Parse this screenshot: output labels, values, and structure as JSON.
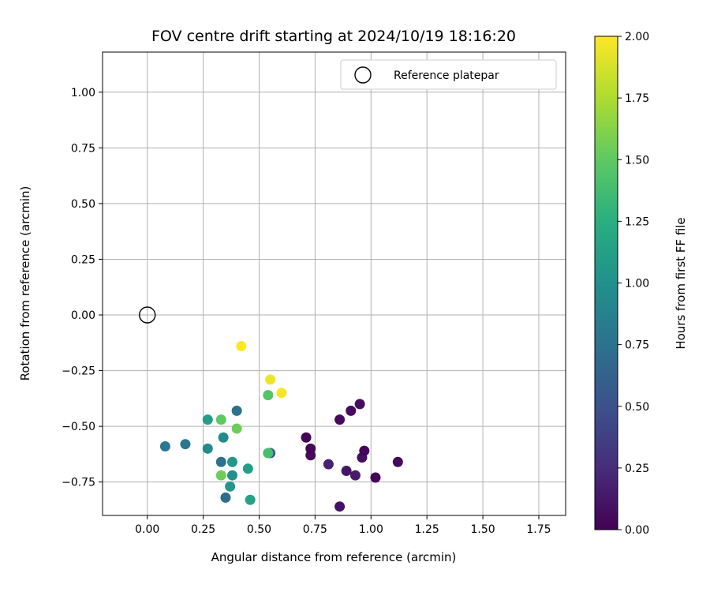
{
  "chart_data": {
    "type": "scatter",
    "title": "FOV centre drift starting at 2024/10/19 18:16:20",
    "xlabel": "Angular distance from reference (arcmin)",
    "ylabel": "Rotation from reference (arcmin)",
    "xlim": [
      -0.2,
      1.87
    ],
    "ylim": [
      -0.9,
      1.18
    ],
    "xticks": [
      0.0,
      0.25,
      0.5,
      0.75,
      1.0,
      1.25,
      1.5,
      1.75
    ],
    "xtick_labels": [
      "0.00",
      "0.25",
      "0.50",
      "0.75",
      "1.00",
      "1.25",
      "1.50",
      "1.75"
    ],
    "yticks": [
      -0.75,
      -0.5,
      -0.25,
      0.0,
      0.25,
      0.5,
      0.75,
      1.0
    ],
    "ytick_labels": [
      "−0.75",
      "−0.50",
      "−0.25",
      "0.00",
      "0.25",
      "0.50",
      "0.75",
      "1.00"
    ],
    "grid": true,
    "legend": {
      "position": "top-right",
      "entries": [
        "Reference platepar"
      ]
    },
    "reference_point": {
      "x": 0.0,
      "y": 0.0,
      "label": "Reference platepar"
    },
    "colorbar": {
      "label": "Hours from first FF file",
      "colormap": "viridis",
      "range": [
        0.0,
        2.0
      ],
      "ticks": [
        0.0,
        0.25,
        0.5,
        0.75,
        1.0,
        1.25,
        1.5,
        1.75,
        2.0
      ],
      "tick_labels": [
        "0.00",
        "0.25",
        "0.50",
        "0.75",
        "1.00",
        "1.25",
        "1.50",
        "1.75",
        "2.00"
      ]
    },
    "points": [
      {
        "x": 0.86,
        "y": -0.86,
        "hours": 0.1
      },
      {
        "x": 1.02,
        "y": -0.73,
        "hours": 0.02
      },
      {
        "x": 0.93,
        "y": -0.72,
        "hours": 0.15
      },
      {
        "x": 0.89,
        "y": -0.7,
        "hours": 0.12
      },
      {
        "x": 0.81,
        "y": -0.67,
        "hours": 0.18
      },
      {
        "x": 1.12,
        "y": -0.66,
        "hours": 0.05
      },
      {
        "x": 0.96,
        "y": -0.64,
        "hours": 0.08
      },
      {
        "x": 0.73,
        "y": -0.63,
        "hours": 0.06
      },
      {
        "x": 0.97,
        "y": -0.61,
        "hours": 0.04
      },
      {
        "x": 0.73,
        "y": -0.6,
        "hours": 0.03
      },
      {
        "x": 0.71,
        "y": -0.55,
        "hours": 0.02
      },
      {
        "x": 0.86,
        "y": -0.47,
        "hours": 0.05
      },
      {
        "x": 0.91,
        "y": -0.43,
        "hours": 0.07
      },
      {
        "x": 0.95,
        "y": -0.4,
        "hours": 0.08
      },
      {
        "x": 0.42,
        "y": -0.14,
        "hours": 2.0
      },
      {
        "x": 0.55,
        "y": -0.29,
        "hours": 1.95
      },
      {
        "x": 0.6,
        "y": -0.35,
        "hours": 1.98
      },
      {
        "x": 0.54,
        "y": -0.36,
        "hours": 1.45
      },
      {
        "x": 0.4,
        "y": -0.43,
        "hours": 0.75
      },
      {
        "x": 0.33,
        "y": -0.47,
        "hours": 1.5
      },
      {
        "x": 0.27,
        "y": -0.47,
        "hours": 1.1
      },
      {
        "x": 0.4,
        "y": -0.51,
        "hours": 1.55
      },
      {
        "x": 0.34,
        "y": -0.55,
        "hours": 0.95
      },
      {
        "x": 0.08,
        "y": -0.59,
        "hours": 0.8
      },
      {
        "x": 0.17,
        "y": -0.58,
        "hours": 0.78
      },
      {
        "x": 0.27,
        "y": -0.6,
        "hours": 0.95
      },
      {
        "x": 0.55,
        "y": -0.62,
        "hours": 0.55
      },
      {
        "x": 0.54,
        "y": -0.62,
        "hours": 1.4
      },
      {
        "x": 0.33,
        "y": -0.66,
        "hours": 0.75
      },
      {
        "x": 0.38,
        "y": -0.66,
        "hours": 1.05
      },
      {
        "x": 0.45,
        "y": -0.69,
        "hours": 1.1
      },
      {
        "x": 0.33,
        "y": -0.72,
        "hours": 1.55
      },
      {
        "x": 0.38,
        "y": -0.72,
        "hours": 1.0
      },
      {
        "x": 0.37,
        "y": -0.77,
        "hours": 1.05
      },
      {
        "x": 0.35,
        "y": -0.82,
        "hours": 0.7
      },
      {
        "x": 0.46,
        "y": -0.83,
        "hours": 1.15
      }
    ]
  }
}
